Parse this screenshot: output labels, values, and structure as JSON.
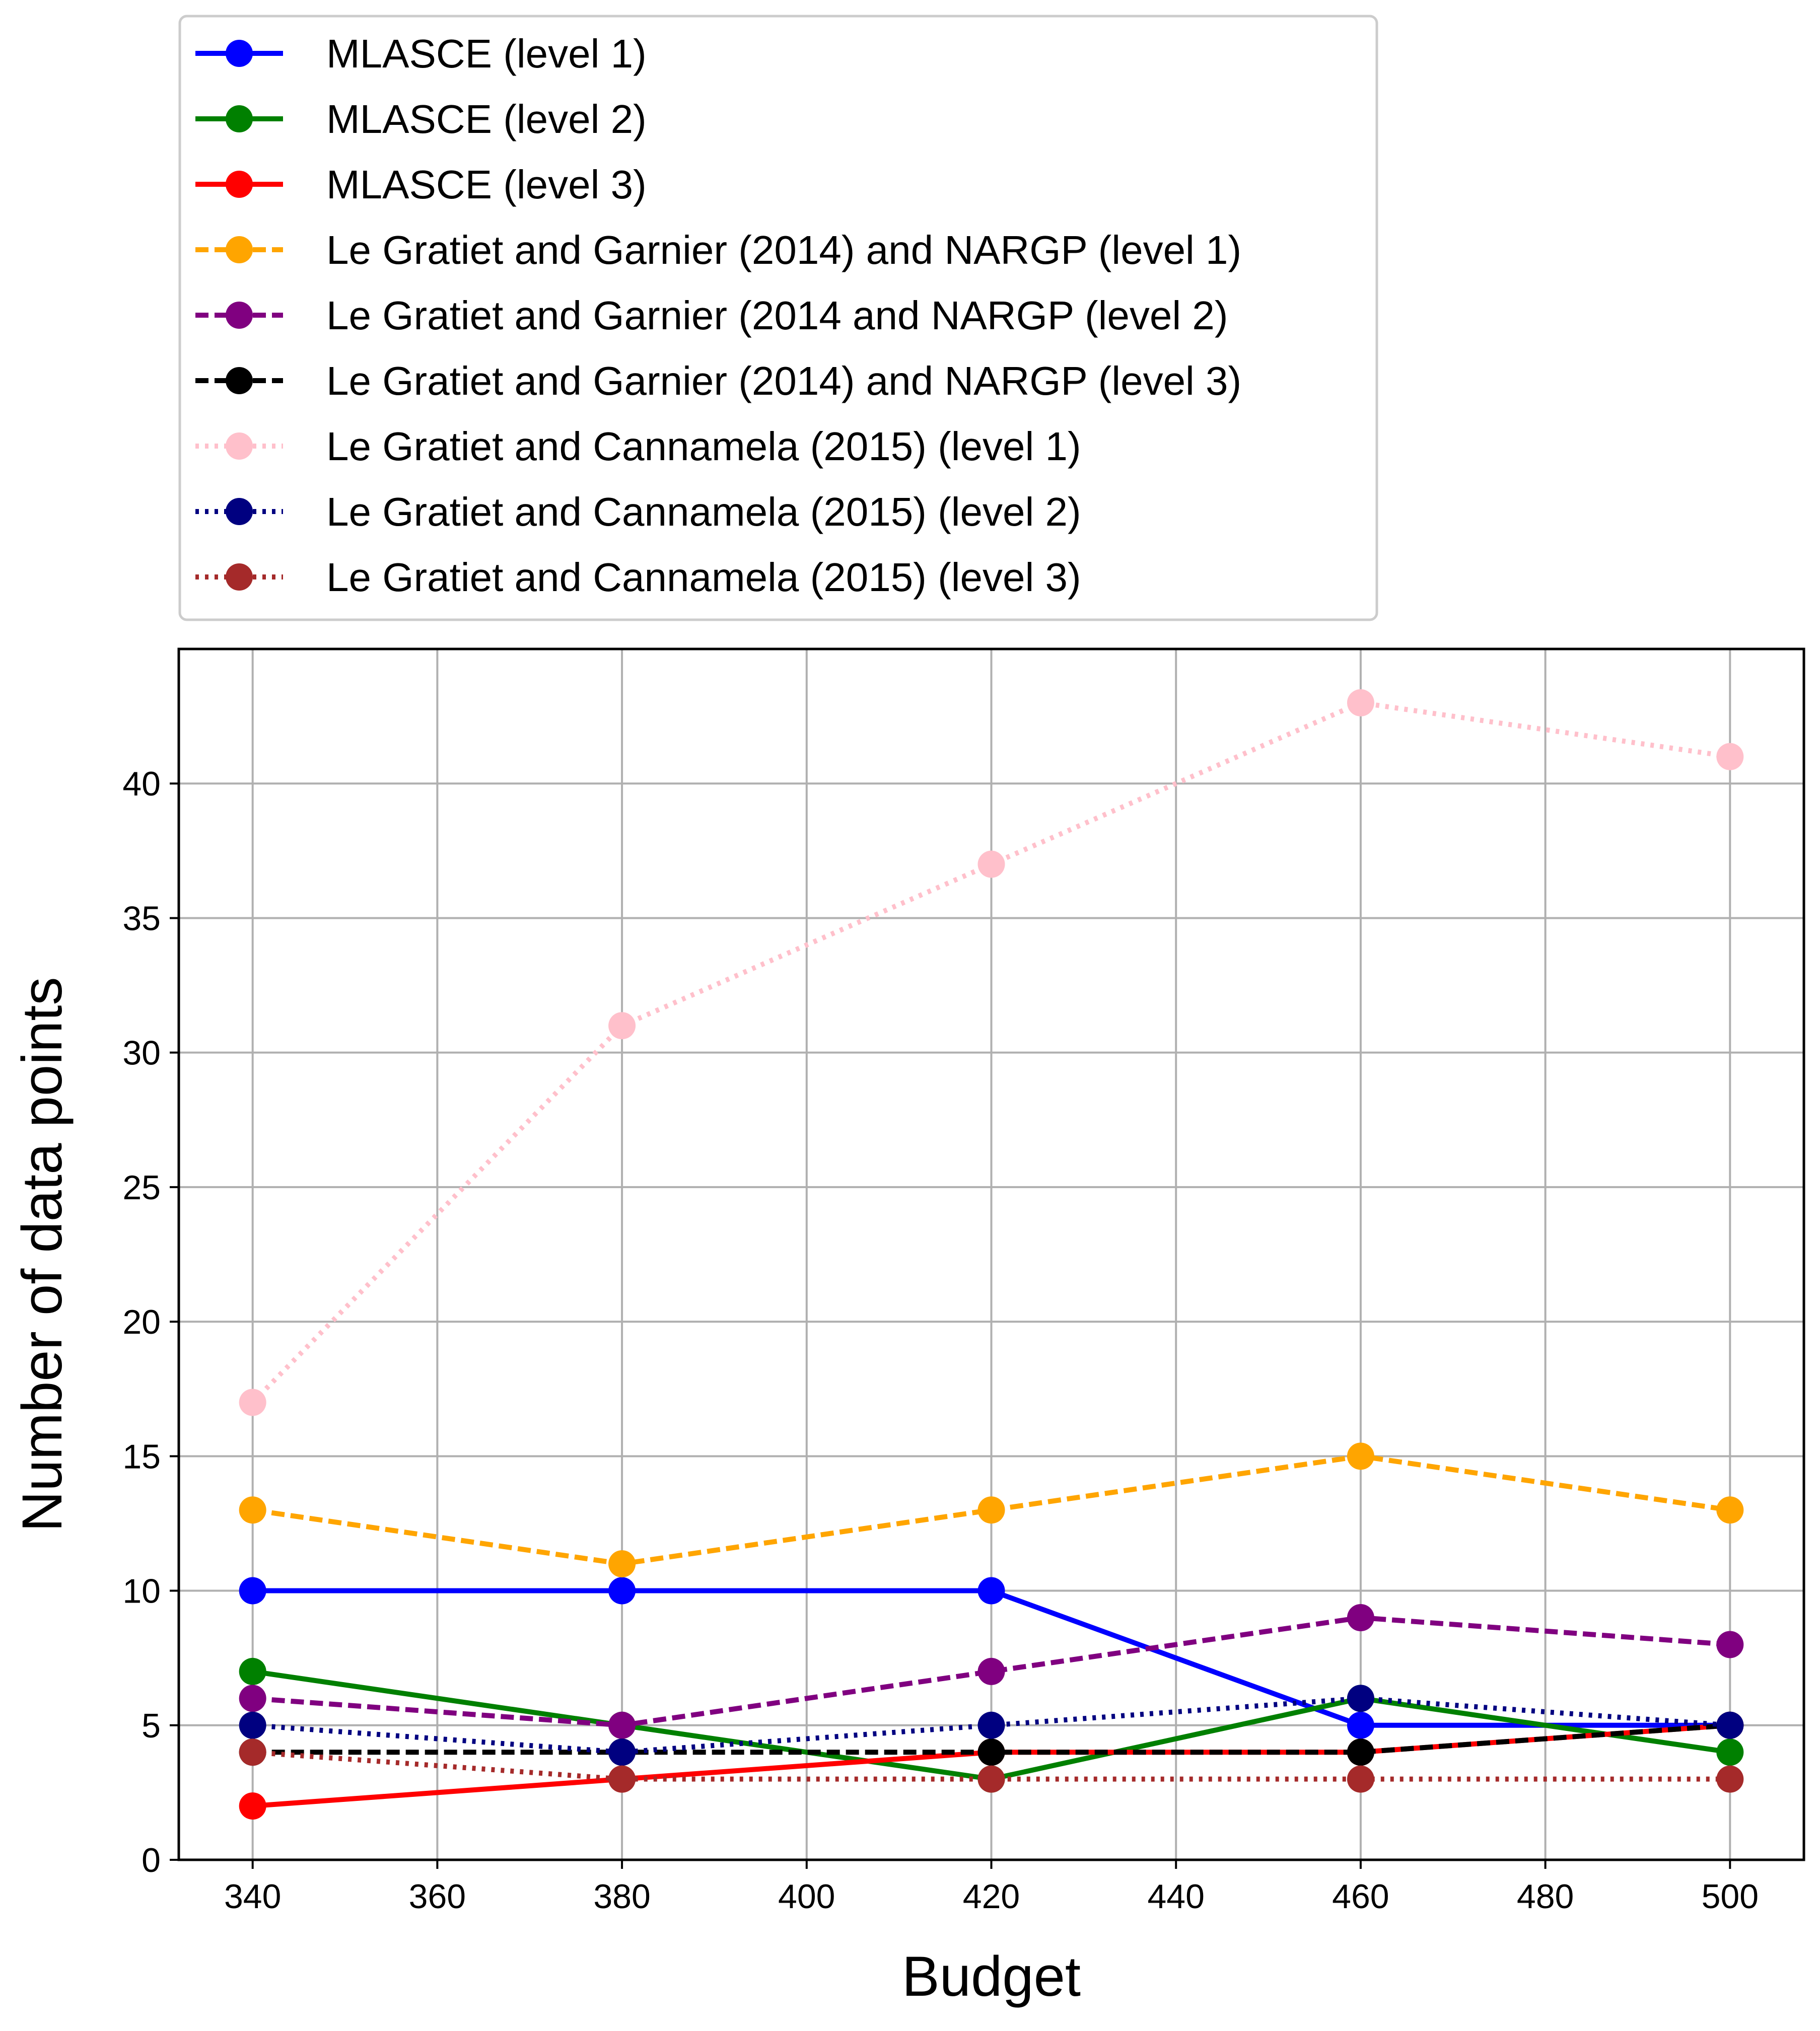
{
  "chart_data": {
    "type": "line",
    "title": "",
    "xlabel": "Budget",
    "ylabel": "Number of data points",
    "x": [
      340,
      380,
      420,
      460,
      500
    ],
    "xlim": [
      332,
      508
    ],
    "ylim": [
      0,
      45
    ],
    "xticks": [
      340,
      360,
      380,
      400,
      420,
      440,
      460,
      480,
      500
    ],
    "yticks": [
      0,
      5,
      10,
      15,
      20,
      25,
      30,
      35,
      40
    ],
    "grid": true,
    "legend_position": "above plot, top-left",
    "series": [
      {
        "name": "MLASCE (level 1)",
        "color": "#0000ff",
        "line_style": "solid",
        "values": [
          10,
          10,
          10,
          5,
          5
        ]
      },
      {
        "name": "MLASCE (level 2)",
        "color": "#008000",
        "line_style": "solid",
        "values": [
          7,
          5,
          3,
          6,
          4
        ]
      },
      {
        "name": "MLASCE (level 3)",
        "color": "#ff0000",
        "line_style": "solid",
        "values": [
          2,
          3,
          4,
          4,
          5
        ]
      },
      {
        "name": "Le Gratiet and Garnier (2014) and NARGP (level 1)",
        "color": "#ffa500",
        "line_style": "dashed",
        "values": [
          13,
          11,
          13,
          15,
          13
        ]
      },
      {
        "name": "Le Gratiet and Garnier (2014 and NARGP (level 2)",
        "color": "#800080",
        "line_style": "dashed",
        "values": [
          6,
          5,
          7,
          9,
          8
        ]
      },
      {
        "name": "Le Gratiet and Garnier (2014) and NARGP (level 3)",
        "color": "#000000",
        "line_style": "dashed",
        "values": [
          4,
          4,
          4,
          4,
          5
        ]
      },
      {
        "name": "Le Gratiet and Cannamela (2015) (level 1)",
        "color": "#ffc0cb",
        "line_style": "dotted",
        "values": [
          17,
          31,
          37,
          43,
          41
        ]
      },
      {
        "name": "Le Gratiet and Cannamela (2015) (level 2)",
        "color": "#000080",
        "line_style": "dotted",
        "values": [
          5,
          4,
          5,
          6,
          5
        ]
      },
      {
        "name": "Le Gratiet and Cannamela (2015) (level 3)",
        "color": "#a52a2a",
        "line_style": "dotted",
        "values": [
          4,
          3,
          3,
          3,
          3
        ]
      }
    ]
  }
}
